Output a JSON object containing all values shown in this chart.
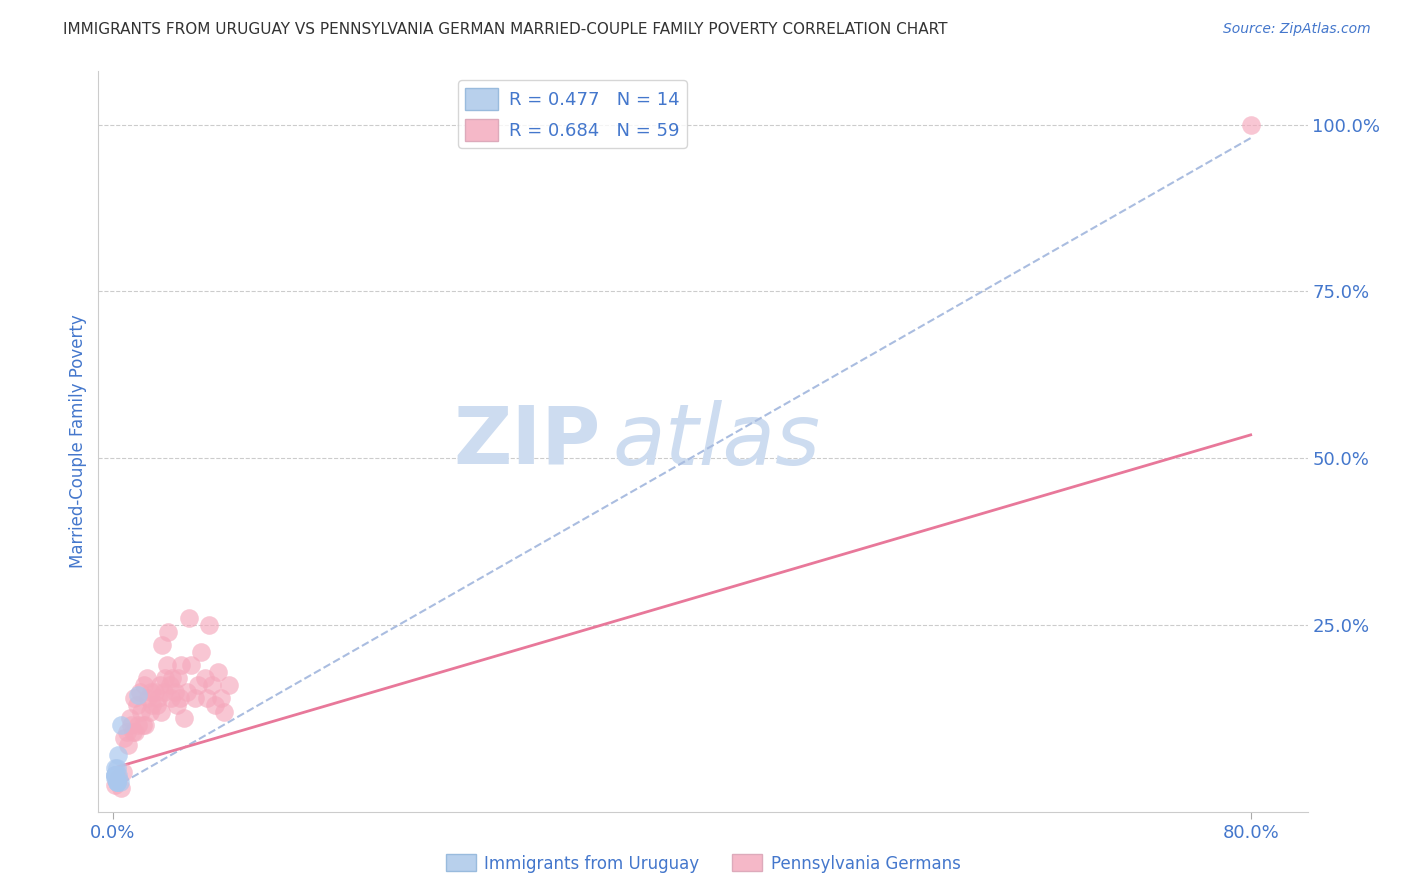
{
  "title": "IMMIGRANTS FROM URUGUAY VS PENNSYLVANIA GERMAN MARRIED-COUPLE FAMILY POVERTY CORRELATION CHART",
  "source": "Source: ZipAtlas.com",
  "ylabel": "Married-Couple Family Poverty",
  "ytick_labels": [
    "100.0%",
    "75.0%",
    "50.0%",
    "25.0%"
  ],
  "ytick_values": [
    1.0,
    0.75,
    0.5,
    0.25
  ],
  "legend_label1": "R = 0.477   N = 14",
  "legend_label2": "R = 0.684   N = 59",
  "legend_item1_color": "#b8d0ec",
  "legend_item2_color": "#f5b8c8",
  "watermark_zip": "ZIP",
  "watermark_atlas": "atlas",
  "watermark_color": "#cddcf0",
  "background_color": "#ffffff",
  "grid_color": "#cccccc",
  "title_color": "#333333",
  "axis_color": "#4477cc",
  "uruguay_scatter_color": "#aac8ee",
  "pa_german_scatter_color": "#f5a8bc",
  "uruguay_line_color": "#aabde0",
  "pa_german_line_color": "#e8789a",
  "uruguay_x": [
    0.002,
    0.003,
    0.004,
    0.002,
    0.006,
    0.003,
    0.004,
    0.002,
    0.005,
    0.003,
    0.002,
    0.018,
    0.003,
    0.002
  ],
  "uruguay_y": [
    0.025,
    0.015,
    0.055,
    0.035,
    0.1,
    0.015,
    0.025,
    0.025,
    0.015,
    0.035,
    0.025,
    0.145,
    0.015,
    0.02
  ],
  "pa_german_x": [
    0.002,
    0.004,
    0.006,
    0.007,
    0.008,
    0.01,
    0.011,
    0.012,
    0.013,
    0.014,
    0.015,
    0.016,
    0.017,
    0.018,
    0.019,
    0.02,
    0.021,
    0.022,
    0.023,
    0.024,
    0.025,
    0.026,
    0.027,
    0.028,
    0.03,
    0.031,
    0.032,
    0.033,
    0.034,
    0.035,
    0.036,
    0.037,
    0.038,
    0.039,
    0.04,
    0.041,
    0.042,
    0.044,
    0.045,
    0.046,
    0.047,
    0.048,
    0.05,
    0.052,
    0.054,
    0.055,
    0.058,
    0.06,
    0.062,
    0.065,
    0.066,
    0.068,
    0.07,
    0.072,
    0.074,
    0.076,
    0.078,
    0.082,
    0.8
  ],
  "pa_german_y": [
    0.01,
    0.02,
    0.005,
    0.03,
    0.08,
    0.09,
    0.07,
    0.11,
    0.1,
    0.09,
    0.14,
    0.09,
    0.13,
    0.1,
    0.15,
    0.12,
    0.1,
    0.16,
    0.1,
    0.17,
    0.14,
    0.12,
    0.15,
    0.13,
    0.15,
    0.13,
    0.14,
    0.16,
    0.12,
    0.22,
    0.15,
    0.17,
    0.19,
    0.24,
    0.16,
    0.14,
    0.17,
    0.15,
    0.13,
    0.17,
    0.14,
    0.19,
    0.11,
    0.15,
    0.26,
    0.19,
    0.14,
    0.16,
    0.21,
    0.17,
    0.14,
    0.25,
    0.16,
    0.13,
    0.18,
    0.14,
    0.12,
    0.16,
    1.0
  ],
  "xmin": -0.01,
  "xmax": 0.84,
  "ymin": -0.03,
  "ymax": 1.08,
  "xtick_positions": [
    0.0,
    0.8
  ],
  "xtick_labels": [
    "0.0%",
    "80.0%"
  ],
  "uruguay_line_x0": 0.0,
  "uruguay_line_x1": 0.8,
  "uruguay_line_y0": 0.005,
  "uruguay_line_y1": 0.98,
  "pa_german_line_x0": 0.0,
  "pa_german_line_x1": 0.8,
  "pa_german_line_y0": 0.035,
  "pa_german_line_y1": 0.535
}
